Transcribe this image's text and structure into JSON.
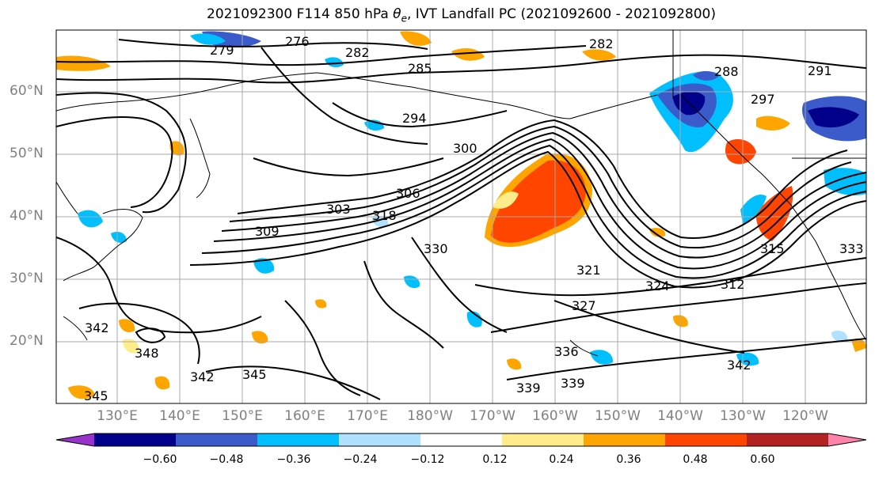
{
  "title": {
    "prefix": "2021092300 F114 850 hPa ",
    "theta_symbol": "θ",
    "theta_subscript": "e",
    "suffix": ", IVT Landfall PC (2021092600 - 2021092800)"
  },
  "lat_labels": [
    "60°N",
    "50°N",
    "40°N",
    "30°N",
    "20°N"
  ],
  "lon_labels": [
    "130°E",
    "140°E",
    "150°E",
    "160°E",
    "170°E",
    "180°W",
    "170°W",
    "160°W",
    "150°W",
    "140°W",
    "130°W",
    "120°W"
  ],
  "contour_labels": [
    "276",
    "279",
    "282",
    "282",
    "285",
    "288",
    "291",
    "294",
    "297",
    "300",
    "303",
    "306",
    "309",
    "312",
    "315",
    "318",
    "321",
    "324",
    "327",
    "330",
    "333",
    "336",
    "339",
    "339",
    "342",
    "342",
    "342",
    "345",
    "345",
    "348"
  ],
  "colorbar": {
    "colors": [
      "#9932cc",
      "#00008b",
      "#3a5bc9",
      "#00bfff",
      "#b0e2ff",
      "#ffffff",
      "#ffec8b",
      "#ffa500",
      "#ff4500",
      "#b22222",
      "#ff82ab"
    ],
    "tick_labels": [
      "−0.60",
      "−0.48",
      "−0.36",
      "−0.24",
      "−0.12",
      "0.12",
      "0.24",
      "0.36",
      "0.48",
      "0.60"
    ]
  }
}
